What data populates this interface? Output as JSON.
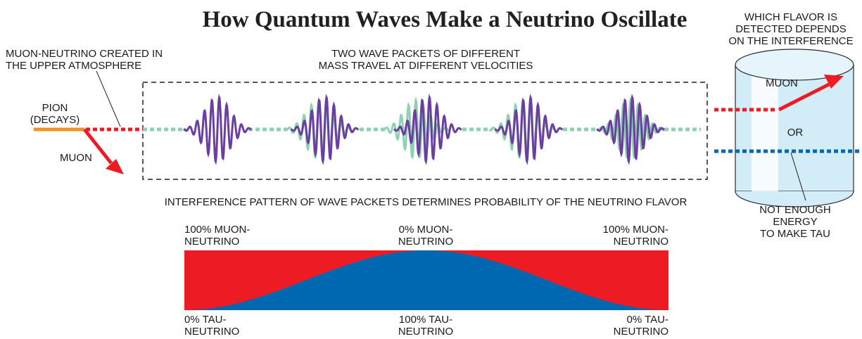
{
  "title": "How Quantum Waves Make a Neutrino Oscillate",
  "labels": {
    "created": "MUON-NEUTRINO CREATED IN\nTHE UPPER ATMOSPHERE",
    "packets": "TWO WAVE PACKETS OF DIFFERENT\nMASS TRAVEL AT DIFFERENT VELOCITIES",
    "pion": "PION\n(DECAYS)",
    "muon_left": "MUON",
    "interference": "INTERFERENCE PATTERN OF WAVE PACKETS DETERMINES PROBABILITY OF THE NEUTRINO FLAVOR",
    "detector_top": "WHICH FLAVOR IS\nDETECTED DEPENDS\nON THE INTERFERENCE",
    "detector_muon": "MUON",
    "detector_or": "OR",
    "not_enough": "NOT ENOUGH\nENERGY\nTO MAKE TAU"
  },
  "probability": {
    "top_left": "100% MUON-\nNEUTRINO",
    "top_mid": "0% MUON-\nNEUTRINO",
    "top_right": "100% MUON-\nNEUTRINO",
    "bot_left": "0% TAU-\nNEUTRINO",
    "bot_mid": "100% TAU-\nNEUTRINO",
    "bot_right": "0% TAU-\nNEUTRINO"
  },
  "colors": {
    "muon_red": "#ed1c24",
    "tau_blue": "#0067b1",
    "packet_purple": "#6b3fa0",
    "packet_green": "#8ed1b0",
    "pion_orange": "#f39322",
    "detector_fill": "#cfeaf6"
  }
}
